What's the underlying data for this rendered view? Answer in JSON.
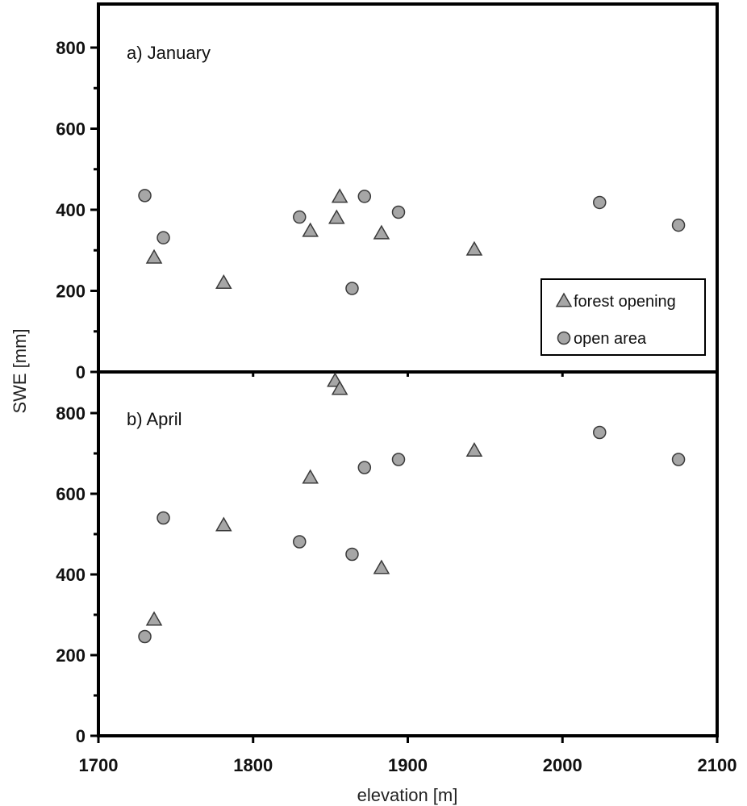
{
  "chart_data": {
    "type": "scatter",
    "xlabel": "elevation [m]",
    "ylabel": "SWE [mm]",
    "xlim": [
      1700,
      2100
    ],
    "x_ticks": [
      1700,
      1800,
      1900,
      2000,
      2100
    ],
    "legend": {
      "placement": "bottom-right of panel a",
      "entries": [
        {
          "name": "forest opening",
          "marker": "triangle"
        },
        {
          "name": "open area",
          "marker": "circle"
        }
      ]
    },
    "marker_color": "#a6a6a6",
    "panels": [
      {
        "label": "a) January",
        "ylim": [
          0,
          900
        ],
        "y_ticks": [
          0,
          200,
          400,
          600,
          800
        ],
        "series": [
          {
            "name": "forest opening",
            "marker": "triangle",
            "points": [
              {
                "x": 1736,
                "y": 282
              },
              {
                "x": 1781,
                "y": 220
              },
              {
                "x": 1837,
                "y": 348
              },
              {
                "x": 1854,
                "y": 380
              },
              {
                "x": 1856,
                "y": 432
              },
              {
                "x": 1883,
                "y": 342
              },
              {
                "x": 1943,
                "y": 302
              }
            ]
          },
          {
            "name": "open area",
            "marker": "circle",
            "points": [
              {
                "x": 1730,
                "y": 435
              },
              {
                "x": 1742,
                "y": 331
              },
              {
                "x": 1830,
                "y": 382
              },
              {
                "x": 1864,
                "y": 206
              },
              {
                "x": 1872,
                "y": 433
              },
              {
                "x": 1894,
                "y": 394
              },
              {
                "x": 2024,
                "y": 418
              },
              {
                "x": 2075,
                "y": 362
              }
            ]
          }
        ]
      },
      {
        "label": "b) April",
        "ylim": [
          0,
          900
        ],
        "y_ticks": [
          0,
          200,
          400,
          600,
          800
        ],
        "series": [
          {
            "name": "forest opening",
            "marker": "triangle",
            "points": [
              {
                "x": 1736,
                "y": 288
              },
              {
                "x": 1781,
                "y": 522
              },
              {
                "x": 1837,
                "y": 640
              },
              {
                "x": 1853,
                "y": 880
              },
              {
                "x": 1856,
                "y": 860
              },
              {
                "x": 1883,
                "y": 416
              },
              {
                "x": 1943,
                "y": 707
              }
            ]
          },
          {
            "name": "open area",
            "marker": "circle",
            "points": [
              {
                "x": 1730,
                "y": 246
              },
              {
                "x": 1742,
                "y": 540
              },
              {
                "x": 1830,
                "y": 481
              },
              {
                "x": 1864,
                "y": 450
              },
              {
                "x": 1872,
                "y": 665
              },
              {
                "x": 1894,
                "y": 685
              },
              {
                "x": 2024,
                "y": 752
              },
              {
                "x": 2075,
                "y": 685
              }
            ]
          }
        ]
      }
    ]
  }
}
